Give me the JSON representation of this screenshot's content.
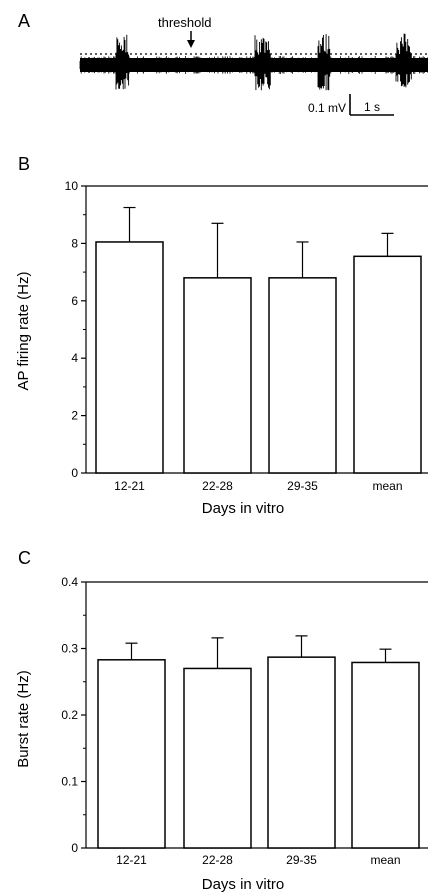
{
  "panels": {
    "a": {
      "letter": "A",
      "threshold_label": "threshold",
      "scale_voltage_label": "0.1 mV",
      "scale_time_label": "1 s"
    }
  },
  "chart_data": [
    {
      "panel": "B",
      "type": "bar",
      "categories": [
        "12-21",
        "22-28",
        "29-35",
        "mean"
      ],
      "values": [
        8.05,
        6.8,
        6.8,
        7.55
      ],
      "errors": [
        1.2,
        1.9,
        1.25,
        0.8
      ],
      "xlabel": "Days in vitro",
      "ylabel": "AP firing rate (Hz)",
      "ylim": [
        0,
        10
      ],
      "yticks": [
        0,
        2,
        4,
        6,
        8,
        10
      ],
      "ytick_labels": [
        "0",
        "2",
        "4",
        "6",
        "8",
        "10"
      ],
      "grid": false
    },
    {
      "panel": "C",
      "type": "bar",
      "categories": [
        "12-21",
        "22-28",
        "29-35",
        "mean"
      ],
      "values": [
        0.283,
        0.27,
        0.287,
        0.279
      ],
      "errors": [
        0.025,
        0.046,
        0.032,
        0.02
      ],
      "xlabel": "Days in vitro",
      "ylabel": "Burst rate (Hz)",
      "ylim": [
        0,
        0.4
      ],
      "yticks": [
        0,
        0.1,
        0.2,
        0.3,
        0.4
      ],
      "ytick_labels": [
        "0",
        "0.1",
        "0.2",
        "0.3",
        "0.4"
      ],
      "grid": false
    }
  ],
  "colors": {
    "ink": "#000000",
    "bar_fill": "#ffffff",
    "background": "#ffffff"
  }
}
